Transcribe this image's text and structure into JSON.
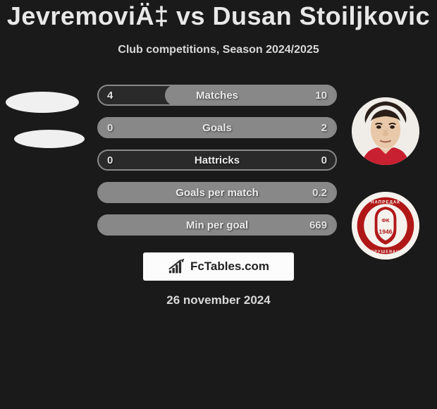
{
  "title": "JevremoviÄ‡ vs Dusan Stoiljkovic",
  "subtitle": "Club competitions, Season 2024/2025",
  "date": "26 november 2024",
  "watermark_text": "FcTables.com",
  "colors": {
    "bg": "#1a1a1a",
    "title": "#e8e8e8",
    "subtitle": "#d8d8d8",
    "bar_border": "#888888",
    "bar_fill": "#888888",
    "avatar_bg": "#f5f5f5"
  },
  "bars": [
    {
      "label": "Matches",
      "left": "4",
      "right": "10",
      "right_fill_pct": 72
    },
    {
      "label": "Goals",
      "left": "0",
      "right": "2",
      "right_fill_pct": 100
    },
    {
      "label": "Hattricks",
      "left": "0",
      "right": "0",
      "right_fill_pct": 0
    },
    {
      "label": "Goals per match",
      "left": "",
      "right": "0.2",
      "right_fill_pct": 100
    },
    {
      "label": "Min per goal",
      "left": "",
      "right": "669",
      "right_fill_pct": 100
    }
  ]
}
